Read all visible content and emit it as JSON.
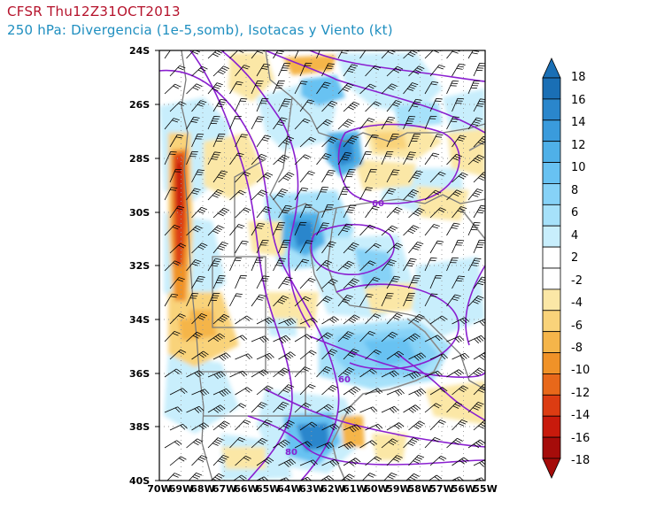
{
  "header": {
    "line1": "CFSR Thu12Z31OCT2013",
    "line2": "250 hPa: Divergencia (1e-5,somb), Isotacas y Viento (kt)"
  },
  "map": {
    "lat_labels": [
      "24S",
      "26S",
      "28S",
      "30S",
      "32S",
      "34S",
      "36S",
      "38S",
      "40S"
    ],
    "lon_labels": [
      "70W",
      "69W",
      "68W",
      "67W",
      "66W",
      "65W",
      "64W",
      "63W",
      "62W",
      "61W",
      "60W",
      "59W",
      "58W",
      "57W",
      "56W",
      "55W"
    ],
    "isotach_labels": [
      "60",
      "60",
      "80"
    ]
  },
  "colorbar": {
    "values": [
      "18",
      "16",
      "14",
      "12",
      "10",
      "8",
      "6",
      "4",
      "2",
      "-2",
      "-4",
      "-6",
      "-8",
      "-10",
      "-12",
      "-14",
      "-16",
      "-18"
    ],
    "colors": [
      "#1a6fb5",
      "#2a86cc",
      "#3a9bdc",
      "#4fb0e8",
      "#68c2f2",
      "#86d2f7",
      "#a6e1fa",
      "#c8eefc",
      "#ffffff",
      "#ffffff",
      "#fbe7a6",
      "#f9d37a",
      "#f5b54a",
      "#f09228",
      "#e8681a",
      "#dc3c12",
      "#c81a0c",
      "#a50c0a"
    ],
    "top_color": "#1a6fb5",
    "bottom_color": "#a50c0a"
  }
}
